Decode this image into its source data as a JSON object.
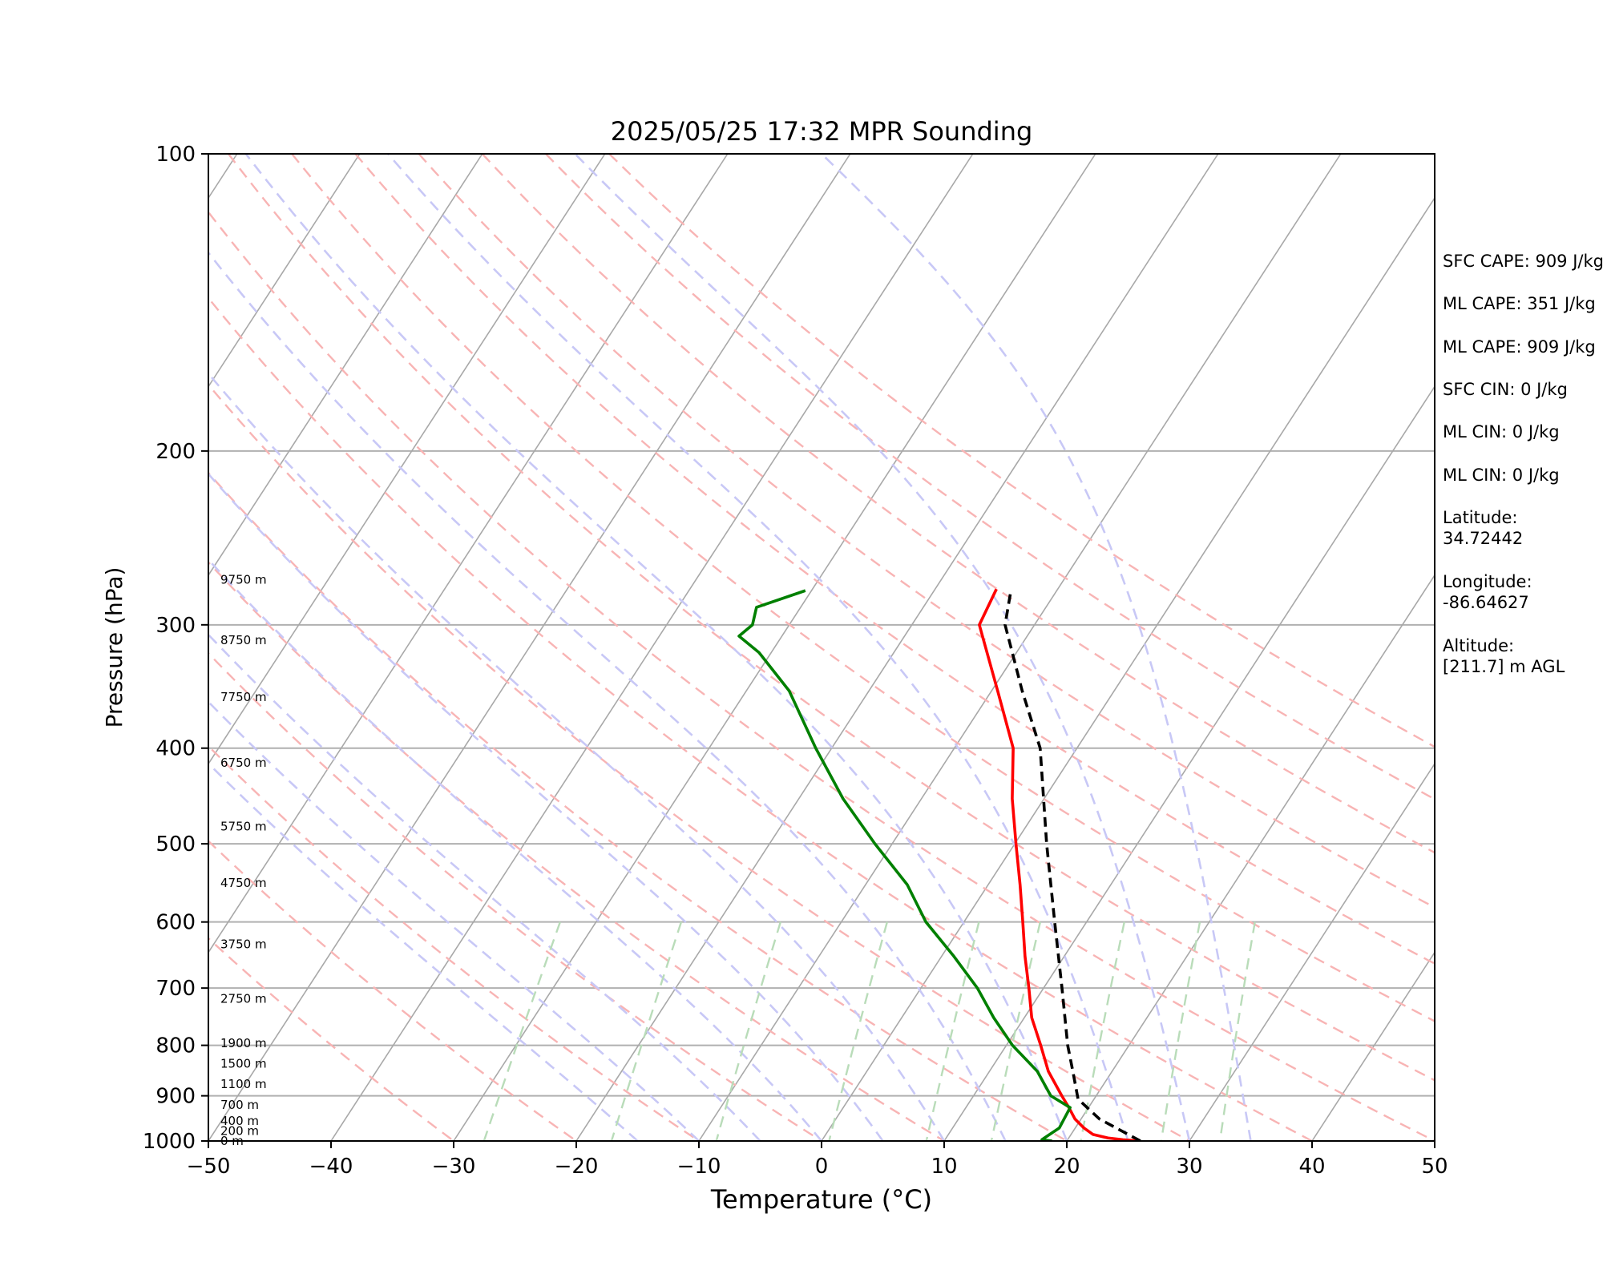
{
  "chart_data": {
    "type": "line",
    "title": "2025/05/25 17:32 MPR Sounding",
    "xlabel": "Temperature (°C)",
    "ylabel": "Pressure (hPa)",
    "xlim": [
      -50,
      50
    ],
    "ylim": [
      1000,
      100
    ],
    "y_scale": "log",
    "x_ticks": [
      -50,
      -40,
      -30,
      -20,
      -10,
      0,
      10,
      20,
      30,
      40,
      50
    ],
    "x_tick_labels": [
      "−50",
      "−40",
      "−30",
      "−20",
      "−10",
      "0",
      "10",
      "20",
      "30",
      "40",
      "50"
    ],
    "y_ticks": [
      100,
      200,
      300,
      400,
      500,
      600,
      700,
      800,
      900,
      1000
    ],
    "y_tick_labels": [
      "100",
      "200",
      "300",
      "400",
      "500",
      "600",
      "700",
      "800",
      "900",
      "1000"
    ],
    "isotherm_temps": [
      -100,
      -90,
      -80,
      -70,
      -60,
      -50,
      -40,
      -30,
      -20,
      -10,
      0,
      10,
      20,
      30,
      40,
      50
    ],
    "dry_adiabat_thetas_c": [
      -30,
      -20,
      -10,
      0,
      10,
      20,
      30,
      40,
      50,
      60,
      70,
      80,
      90,
      100,
      110,
      120
    ],
    "moist_adiabat_start_temps_c": [
      -15,
      -10,
      -5,
      0,
      5,
      10,
      15,
      20,
      25,
      30,
      35
    ],
    "mixing_ratio_lines_gkg": [
      0.4,
      1,
      2,
      4,
      7,
      10,
      16,
      24,
      32
    ],
    "series": [
      {
        "name": "",
        "color": "#ff0000",
        "points": [
          [
            1000,
            26.0
          ],
          [
            997,
            24.5
          ],
          [
            993,
            23.2
          ],
          [
            985,
            21.8
          ],
          [
            970,
            20.7
          ],
          [
            950,
            19.5
          ],
          [
            925,
            18.4
          ],
          [
            900,
            17.2
          ],
          [
            850,
            14.8
          ],
          [
            800,
            12.8
          ],
          [
            750,
            10.6
          ],
          [
            700,
            8.8
          ],
          [
            650,
            6.8
          ],
          [
            600,
            4.8
          ],
          [
            550,
            2.6
          ],
          [
            500,
            0.1
          ],
          [
            450,
            -2.6
          ],
          [
            400,
            -5.2
          ],
          [
            350,
            -9.5
          ],
          [
            300,
            -14.5
          ],
          [
            276,
            -15.0
          ]
        ]
      },
      {
        "name": "",
        "color": "#008000",
        "points": [
          [
            1000,
            18.8
          ],
          [
            997,
            17.9
          ],
          [
            990,
            18.1
          ],
          [
            970,
            18.7
          ],
          [
            925,
            18.5
          ],
          [
            900,
            16.3
          ],
          [
            850,
            13.9
          ],
          [
            800,
            10.5
          ],
          [
            750,
            7.5
          ],
          [
            700,
            4.6
          ],
          [
            650,
            1.0
          ],
          [
            600,
            -3.1
          ],
          [
            550,
            -6.6
          ],
          [
            500,
            -11.4
          ],
          [
            450,
            -16.4
          ],
          [
            400,
            -21.3
          ],
          [
            350,
            -26.5
          ],
          [
            320,
            -31.0
          ],
          [
            308,
            -33.5
          ],
          [
            300,
            -33.0
          ],
          [
            288,
            -33.6
          ],
          [
            277,
            -30.5
          ]
        ]
      },
      {
        "name": "",
        "color": "#000000",
        "dashed": true,
        "points": [
          [
            1000,
            26.0
          ],
          [
            950,
            21.5
          ],
          [
            907,
            18.7
          ],
          [
            850,
            16.8
          ],
          [
            800,
            15.0
          ],
          [
            700,
            11.5
          ],
          [
            600,
            7.4
          ],
          [
            500,
            2.6
          ],
          [
            400,
            -3.0
          ],
          [
            350,
            -7.5
          ],
          [
            300,
            -12.4
          ],
          [
            276,
            -13.8
          ]
        ]
      }
    ],
    "height_labels": [
      {
        "p": 1000,
        "text": "0 m"
      },
      {
        "p": 977,
        "text": "200 m"
      },
      {
        "p": 954,
        "text": "400 m"
      },
      {
        "p": 919,
        "text": "700 m"
      },
      {
        "p": 876,
        "text": "1100 m"
      },
      {
        "p": 835,
        "text": "1500 m"
      },
      {
        "p": 796,
        "text": "1900 m"
      },
      {
        "p": 718,
        "text": "2750 m"
      },
      {
        "p": 632,
        "text": "3750 m"
      },
      {
        "p": 548,
        "text": "4750 m"
      },
      {
        "p": 480,
        "text": "5750 m"
      },
      {
        "p": 414,
        "text": "6750 m"
      },
      {
        "p": 355,
        "text": "7750 m"
      },
      {
        "p": 311,
        "text": "8750 m"
      },
      {
        "p": 270,
        "text": "9750 m"
      }
    ]
  },
  "side_panel": {
    "sfc_cape": "SFC CAPE: 909 J/kg",
    "ml_cape_1": "ML CAPE: 351 J/kg",
    "ml_cape_2": "ML CAPE: 909 J/kg",
    "sfc_cin": "SFC CIN: 0 J/kg",
    "ml_cin_1": "ML CIN: 0 J/kg",
    "ml_cin_2": "ML CIN: 0 J/kg",
    "latitude_label": "Latitude:",
    "latitude_value": "34.72442",
    "longitude_label": "Longitude:",
    "longitude_value": "-86.64627",
    "altitude_label": "Altitude:",
    "altitude_value": "[211.7] m AGL"
  }
}
